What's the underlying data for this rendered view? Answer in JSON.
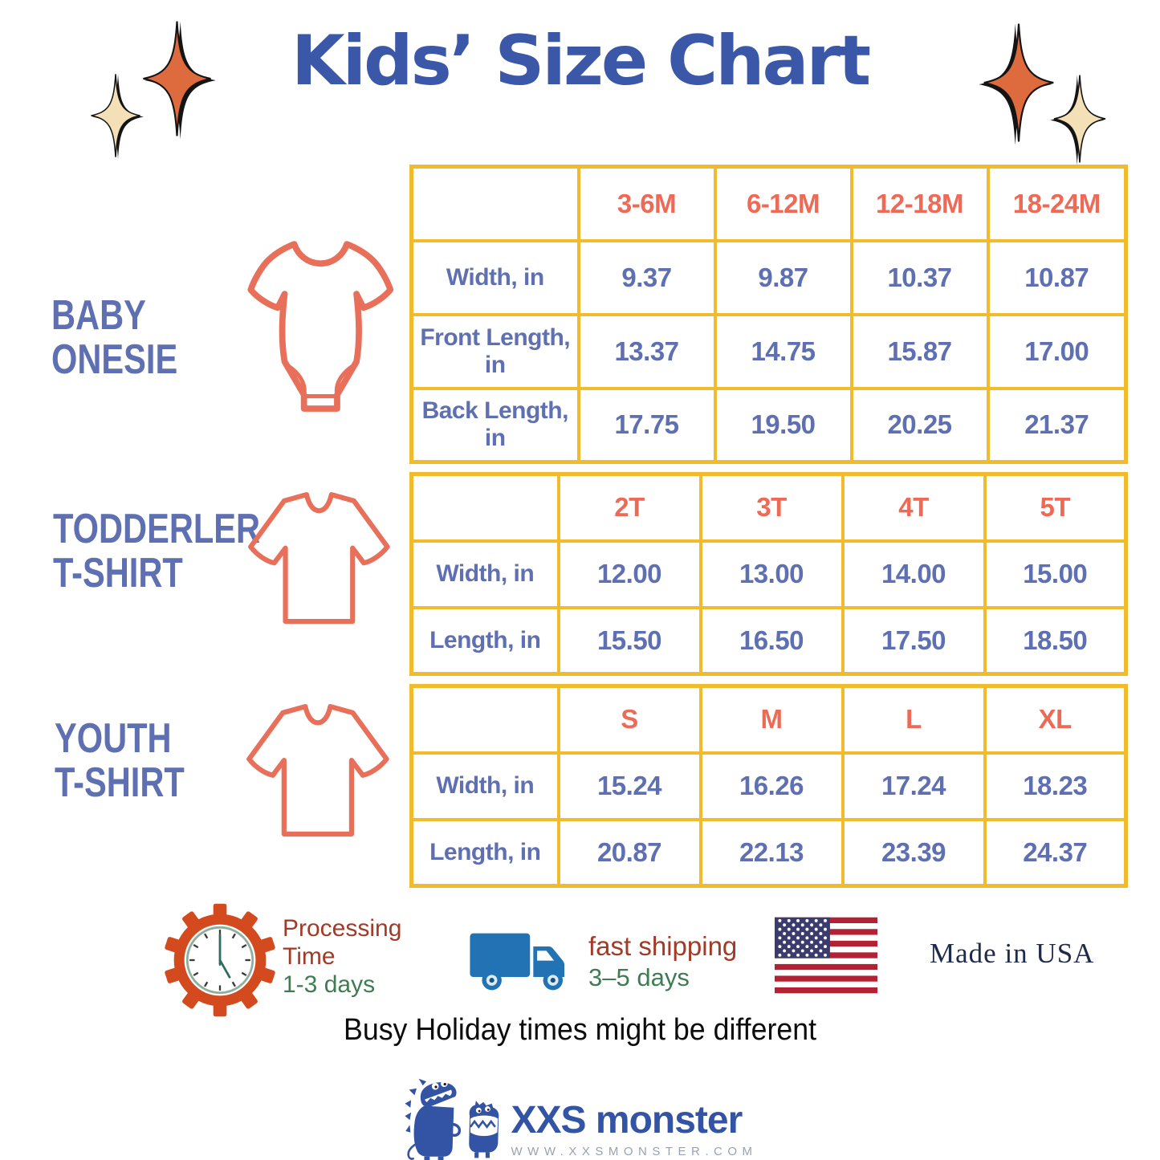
{
  "page_title": "Kids’ Size Chart",
  "colors": {
    "title_blue": "#3B57A8",
    "table_text_blue": "#5E6FB2",
    "size_orange": "#EE6A56",
    "border_yellow": "#F0BC2E",
    "garment_orange": "#E8705A",
    "sparkle_orange": "#DE6B3D",
    "sparkle_cream": "#F3E0B6",
    "gear_orange": "#D44A1F",
    "truck_blue": "#2173B4",
    "brand_blue": "#3353A4"
  },
  "icons": {
    "decoration": "sparkle-icon",
    "baby": "onesie-icon",
    "toddler": "tshirt-icon",
    "youth": "tshirt-icon",
    "processing": "gear-clock-icon",
    "shipping": "truck-icon",
    "origin": "usa-flag-icon",
    "brand": "monster-mascot-icon"
  },
  "sections": [
    {
      "id": "baby-onesie",
      "label_lines": [
        "BABY",
        "ONESIE"
      ],
      "table": {
        "sizes": [
          "3-6M",
          "6-12M",
          "12-18M",
          "18-24M"
        ],
        "rows": [
          {
            "label": "Width, in",
            "values": [
              "9.37",
              "9.87",
              "10.37",
              "10.87"
            ]
          },
          {
            "label": "Front Length, in",
            "values": [
              "13.37",
              "14.75",
              "15.87",
              "17.00"
            ]
          },
          {
            "label": "Back Length, in",
            "values": [
              "17.75",
              "19.50",
              "20.25",
              "21.37"
            ]
          }
        ]
      }
    },
    {
      "id": "toddler-tshirt",
      "label_lines": [
        "TODDERLER",
        "T-SHIRT"
      ],
      "table": {
        "sizes": [
          "2T",
          "3T",
          "4T",
          "5T"
        ],
        "rows": [
          {
            "label": "Width, in",
            "values": [
              "12.00",
              "13.00",
              "14.00",
              "15.00"
            ]
          },
          {
            "label": "Length, in",
            "values": [
              "15.50",
              "16.50",
              "17.50",
              "18.50"
            ]
          }
        ]
      }
    },
    {
      "id": "youth-tshirt",
      "label_lines": [
        "YOUTH",
        "T-SHIRT"
      ],
      "table": {
        "sizes": [
          "S",
          "M",
          "L",
          "XL"
        ],
        "rows": [
          {
            "label": "Width, in",
            "values": [
              "15.24",
              "16.26",
              "17.24",
              "18.23"
            ]
          },
          {
            "label": "Length, in",
            "values": [
              "20.87",
              "22.13",
              "23.39",
              "24.37"
            ]
          }
        ]
      }
    }
  ],
  "footer": {
    "processing": {
      "lines": [
        "Processing",
        "Time"
      ],
      "days": "1-3 days"
    },
    "shipping": {
      "label": "fast shipping",
      "days": "3–5 days"
    },
    "made_in": "Made in USA",
    "notice": "Busy Holiday times might be different"
  },
  "brand": {
    "name": "XXS monster",
    "website": "WWW.XXSMONSTER.COM"
  }
}
